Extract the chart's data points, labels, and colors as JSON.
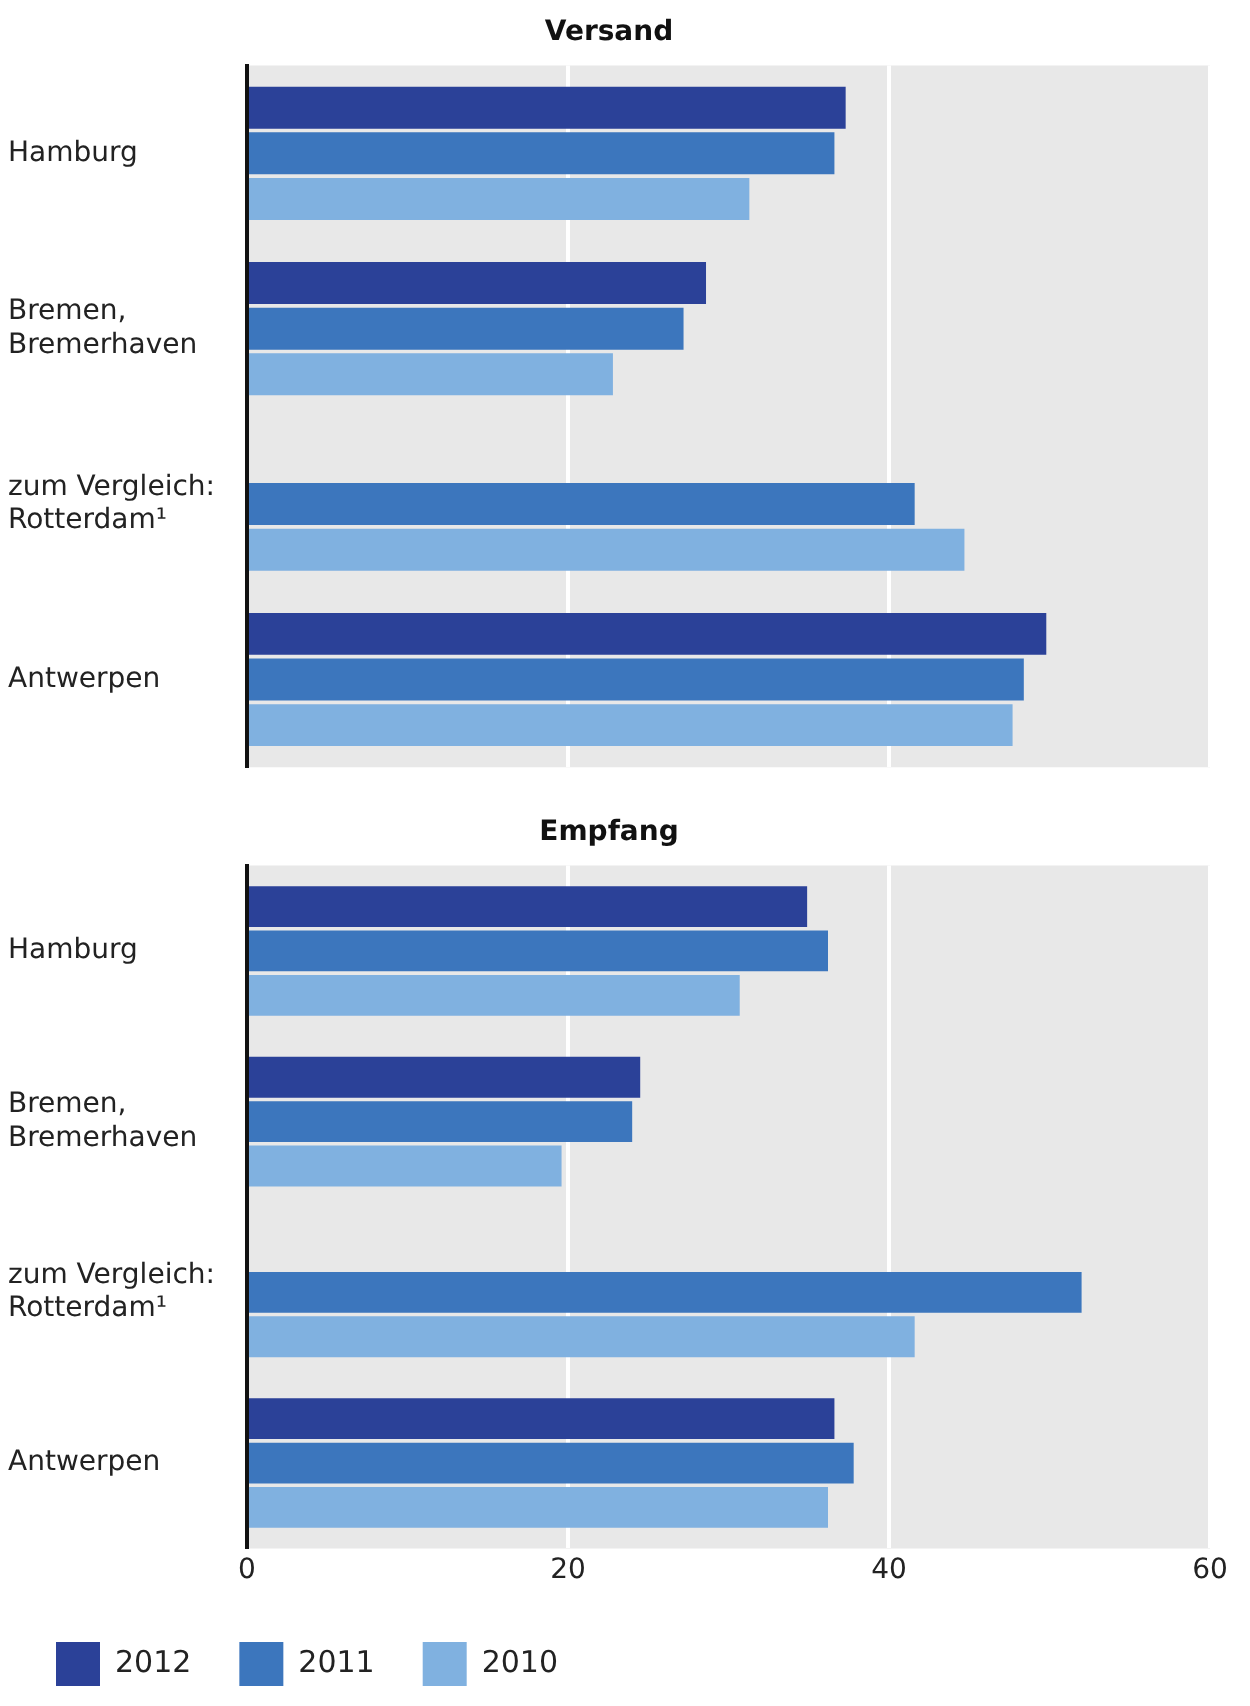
{
  "chart_data": [
    {
      "type": "bar",
      "orientation": "horizontal",
      "title": "Versand",
      "categories": [
        "Hamburg",
        "Bremen,\nBremerhaven",
        "zum Vergleich:\nRotterdam¹",
        "Antwerpen"
      ],
      "series": [
        {
          "color": "#2b4198",
          "values": [
            37.3,
            28.6,
            null,
            49.8
          ]
        },
        {
          "color": "#3c76bd",
          "values": [
            36.6,
            27.2,
            41.6,
            48.4
          ]
        },
        {
          "color": "#80b1e0",
          "values": [
            31.3,
            22.8,
            44.7,
            47.7
          ]
        }
      ],
      "xlim": [
        0,
        60
      ],
      "xticks": [
        0,
        20,
        40,
        60
      ],
      "grid": "x",
      "legend": false,
      "tick_labels": "y"
    },
    {
      "type": "bar",
      "orientation": "horizontal",
      "title": "Empfang",
      "categories": [
        "Hamburg",
        "Bremen,\nBremerhaven",
        "zum Vergleich:\nRotterdam¹",
        "Antwerpen"
      ],
      "series": [
        {
          "name": "2012",
          "color": "#2b4198",
          "values": [
            34.9,
            24.5,
            null,
            36.6
          ]
        },
        {
          "name": "2011",
          "color": "#3c76bd",
          "values": [
            36.2,
            24.0,
            52.0,
            37.8
          ]
        },
        {
          "name": "2010",
          "color": "#80b1e0",
          "values": [
            30.7,
            19.6,
            41.6,
            36.2
          ]
        }
      ],
      "xlim": [
        0,
        60
      ],
      "xticks": [
        0,
        20,
        40,
        60
      ],
      "grid": "x",
      "legend": "bottom"
    }
  ]
}
